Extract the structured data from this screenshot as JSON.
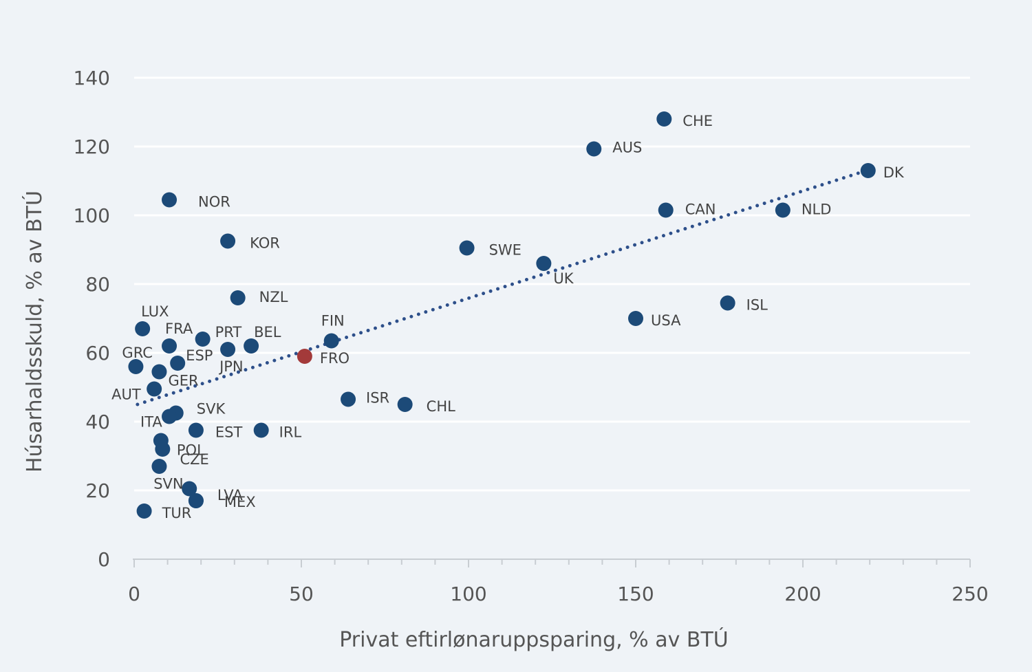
{
  "chart_data": {
    "type": "scatter",
    "xlabel": "Privat eftirlønaruppsparing, % av BTÚ",
    "ylabel": "Húsarhaldsskuld, % av BTÚ",
    "xlim": [
      0,
      250
    ],
    "ylim": [
      0,
      140
    ],
    "xticks": [
      0,
      50,
      100,
      150,
      200,
      250
    ],
    "yticks": [
      0,
      20,
      40,
      60,
      80,
      100,
      120,
      140
    ],
    "grid": "horizontal",
    "colors": {
      "point": "#1c4a78",
      "highlight": "#a33a3a",
      "trend": "#2d4f8a"
    },
    "trendline": {
      "style": "dotted",
      "x": [
        1,
        219
      ],
      "y": [
        45,
        113
      ]
    },
    "points": [
      {
        "label": "CHE",
        "x": 158.5,
        "y": 128
      },
      {
        "label": "AUS",
        "x": 137.5,
        "y": 119.3
      },
      {
        "label": "DK",
        "x": 219.5,
        "y": 113
      },
      {
        "label": "NOR",
        "x": 10.5,
        "y": 104.5
      },
      {
        "label": "CAN",
        "x": 159,
        "y": 101.5
      },
      {
        "label": "NLD",
        "x": 194,
        "y": 101.5
      },
      {
        "label": "KOR",
        "x": 28,
        "y": 92.5
      },
      {
        "label": "SWE",
        "x": 99.5,
        "y": 90.5
      },
      {
        "label": "UK",
        "x": 122.5,
        "y": 86
      },
      {
        "label": "NZL",
        "x": 31,
        "y": 76
      },
      {
        "label": "ISL",
        "x": 177.5,
        "y": 74.5
      },
      {
        "label": "USA",
        "x": 150,
        "y": 70
      },
      {
        "label": "LUX",
        "x": 2.5,
        "y": 67
      },
      {
        "label": "FIN",
        "x": 59,
        "y": 63.5
      },
      {
        "label": "PRT",
        "x": 20.5,
        "y": 64
      },
      {
        "label": "FRA",
        "x": 10.5,
        "y": 62
      },
      {
        "label": "BEL",
        "x": 35,
        "y": 62
      },
      {
        "label": "JPN",
        "x": 28,
        "y": 61
      },
      {
        "label": "FRO",
        "x": 51,
        "y": 59,
        "highlight": true
      },
      {
        "label": "ESP",
        "x": 13,
        "y": 57
      },
      {
        "label": "GRC",
        "x": 0.5,
        "y": 56
      },
      {
        "label": "GER",
        "x": 7.5,
        "y": 54.5
      },
      {
        "label": "AUT",
        "x": 6,
        "y": 49.5
      },
      {
        "label": "ISR",
        "x": 64,
        "y": 46.5
      },
      {
        "label": "CHL",
        "x": 81,
        "y": 45
      },
      {
        "label": "SVK",
        "x": 12.5,
        "y": 42.5
      },
      {
        "label": "ITA",
        "x": 10.5,
        "y": 41.5
      },
      {
        "label": "EST",
        "x": 18.5,
        "y": 37.5
      },
      {
        "label": "IRL",
        "x": 38,
        "y": 37.5
      },
      {
        "label": "POL",
        "x": 8,
        "y": 34.5
      },
      {
        "label": "POL2",
        "x": 8.5,
        "y": 32,
        "hide_label": true
      },
      {
        "label": "CZE",
        "x": 7.5,
        "y": 27
      },
      {
        "label": "SVN",
        "x": 16.5,
        "y": 20.5
      },
      {
        "label": "LVA",
        "x": 18.5,
        "y": 17
      },
      {
        "label": "MEX",
        "x": 18.5,
        "y": 17,
        "hide_label": true
      },
      {
        "label": "TUR",
        "x": 3,
        "y": 14
      }
    ]
  }
}
